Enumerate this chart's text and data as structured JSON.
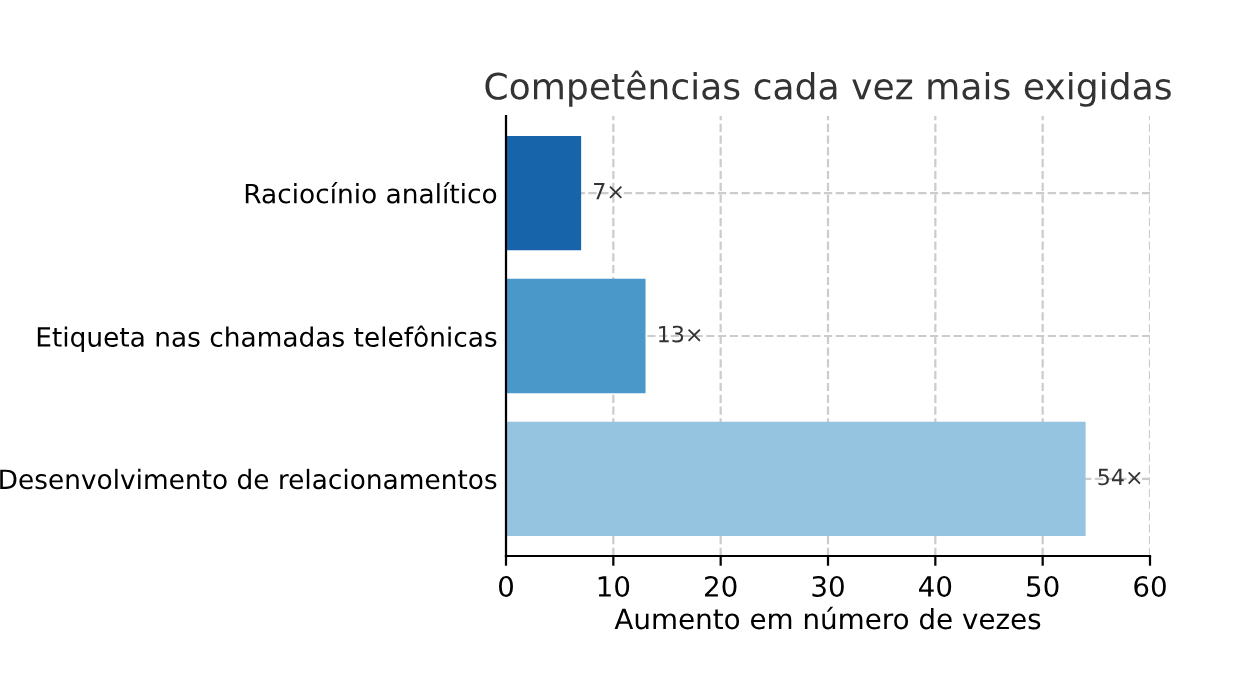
{
  "chart_data": {
    "type": "bar",
    "orientation": "horizontal",
    "title": "Competências cada vez mais exigidas",
    "xlabel": "Aumento em número de vezes",
    "categories": [
      "Raciocínio analítico",
      "Etiqueta nas chamadas telefônicas",
      "Desenvolvimento de relacionamentos"
    ],
    "values": [
      7,
      13,
      54
    ],
    "colors": [
      "#1764ab",
      "#4a98c9",
      "#94c4df"
    ],
    "value_labels": [
      "7×",
      "13×",
      "54×"
    ],
    "xlim": [
      0,
      60
    ],
    "xticks": [
      0,
      10,
      20,
      30,
      40,
      50,
      60
    ],
    "grid": true
  }
}
